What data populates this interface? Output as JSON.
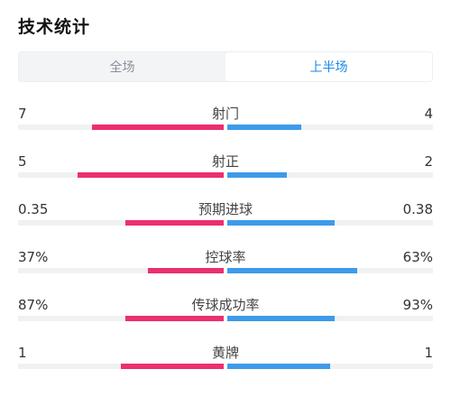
{
  "title": "技术统计",
  "tabs": [
    {
      "label": "全场",
      "active": false
    },
    {
      "label": "上半场",
      "active": true
    }
  ],
  "colors": {
    "home": "#ec2f6d",
    "away": "#3d9be9",
    "active_tab": "#1e88e5"
  },
  "stats": [
    {
      "label": "射门",
      "home": "7",
      "away": "4",
      "home_share": 0.64,
      "away_share": 0.36
    },
    {
      "label": "射正",
      "home": "5",
      "away": "2",
      "home_share": 0.71,
      "away_share": 0.29
    },
    {
      "label": "预期进球",
      "home": "0.35",
      "away": "0.38",
      "home_share": 0.48,
      "away_share": 0.52
    },
    {
      "label": "控球率",
      "home": "37%",
      "away": "63%",
      "home_share": 0.37,
      "away_share": 0.63
    },
    {
      "label": "传球成功率",
      "home": "87%",
      "away": "93%",
      "home_share": 0.48,
      "away_share": 0.52
    },
    {
      "label": "黄牌",
      "home": "1",
      "away": "1",
      "home_share": 0.5,
      "away_share": 0.5
    }
  ]
}
